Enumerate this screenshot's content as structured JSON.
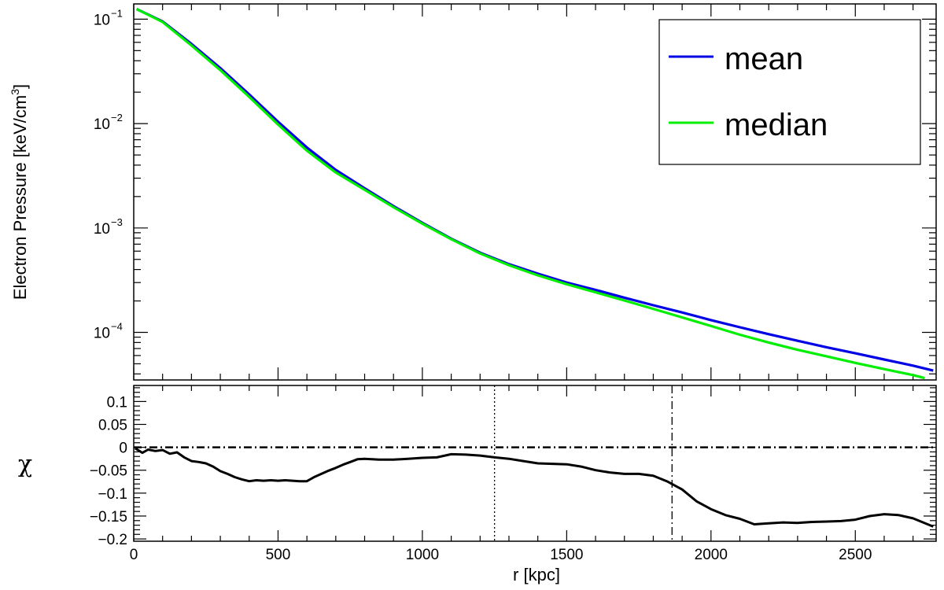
{
  "chart_data": [
    {
      "type": "line",
      "panel": "top",
      "ylabel": "Electron Pressure [keV/cm",
      "ylabel_sup": "3",
      "ylabel_close": "]",
      "yscale": "log",
      "xlim": [
        0,
        2780
      ],
      "ylim": [
        3.5e-05,
        0.14
      ],
      "y_tick_labels": [
        {
          "base": "10",
          "exp": "−1"
        },
        {
          "base": "10",
          "exp": "−2"
        },
        {
          "base": "10",
          "exp": "−3"
        },
        {
          "base": "10",
          "exp": "−4"
        }
      ],
      "legend": {
        "placement": "top-right",
        "entries": [
          "mean",
          "median"
        ]
      },
      "series": [
        {
          "name": "mean",
          "color": "#0000e6",
          "x": [
            10,
            100,
            200,
            300,
            400,
            500,
            600,
            700,
            800,
            900,
            1000,
            1100,
            1200,
            1300,
            1400,
            1500,
            1600,
            1700,
            1800,
            1900,
            2000,
            2100,
            2200,
            2300,
            2400,
            2500,
            2600,
            2700,
            2770
          ],
          "y": [
            0.125,
            0.095,
            0.058,
            0.034,
            0.019,
            0.0104,
            0.0059,
            0.0036,
            0.0024,
            0.00162,
            0.00112,
            0.00079,
            0.00058,
            0.00045,
            0.000365,
            0.0003,
            0.000255,
            0.000215,
            0.000182,
            0.000155,
            0.000131,
            0.000112,
            9.6e-05,
            8.3e-05,
            7.2e-05,
            6.3e-05,
            5.5e-05,
            4.8e-05,
            4.3e-05
          ]
        },
        {
          "name": "median",
          "color": "#00ee00",
          "x": [
            10,
            100,
            200,
            300,
            400,
            500,
            600,
            700,
            800,
            900,
            1000,
            1100,
            1200,
            1300,
            1400,
            1500,
            1600,
            1700,
            1800,
            1900,
            2000,
            2100,
            2200,
            2300,
            2400,
            2500,
            2600,
            2700,
            2740
          ],
          "y": [
            0.125,
            0.094,
            0.056,
            0.0325,
            0.018,
            0.0098,
            0.0055,
            0.0034,
            0.00232,
            0.00158,
            0.0011,
            0.00078,
            0.00057,
            0.00044,
            0.000352,
            0.000289,
            0.000242,
            0.000202,
            0.000168,
            0.000139,
            0.000115,
            9.5e-05,
            8e-05,
            6.8e-05,
            5.9e-05,
            5.1e-05,
            4.45e-05,
            3.9e-05,
            3.65e-05
          ]
        }
      ]
    },
    {
      "type": "line",
      "panel": "bottom",
      "xlabel": "r [kpc]",
      "ylabel": "χ",
      "xlim": [
        0,
        2780
      ],
      "ylim": [
        -0.205,
        0.135
      ],
      "x_ticks": [
        0,
        500,
        1000,
        1500,
        2000,
        2500
      ],
      "x_tick_labels": [
        "0",
        "500",
        "1000",
        "1500",
        "2000",
        "2500"
      ],
      "y_ticks": [
        0.1,
        0.05,
        0,
        -0.05,
        -0.1,
        -0.15,
        -0.2
      ],
      "y_tick_labels": [
        "0.1",
        "0.05",
        "0",
        "−0.05",
        "−0.1",
        "−0.15",
        "−0.2"
      ],
      "reference_lines": [
        {
          "type": "horizontal",
          "y": 0,
          "style": "dash-dot"
        },
        {
          "type": "vertical",
          "x": 1250,
          "style": "dotted"
        },
        {
          "type": "vertical",
          "x": 1865,
          "style": "dash-dot"
        }
      ],
      "series": [
        {
          "name": "",
          "color": "#000000",
          "x": [
            5,
            30,
            50,
            75,
            100,
            125,
            150,
            175,
            200,
            225,
            250,
            275,
            300,
            325,
            350,
            375,
            400,
            425,
            450,
            475,
            500,
            525,
            550,
            575,
            600,
            625,
            650,
            675,
            700,
            725,
            750,
            775,
            800,
            850,
            900,
            950,
            1000,
            1050,
            1100,
            1150,
            1200,
            1250,
            1300,
            1350,
            1400,
            1450,
            1500,
            1550,
            1600,
            1650,
            1700,
            1750,
            1800,
            1850,
            1900,
            1950,
            2000,
            2050,
            2100,
            2150,
            2200,
            2250,
            2300,
            2350,
            2400,
            2450,
            2500,
            2550,
            2600,
            2650,
            2700,
            2770
          ],
          "y": [
            -0.002,
            -0.012,
            -0.005,
            -0.008,
            -0.006,
            -0.014,
            -0.011,
            -0.022,
            -0.03,
            -0.032,
            -0.035,
            -0.042,
            -0.052,
            -0.058,
            -0.065,
            -0.07,
            -0.074,
            -0.072,
            -0.073,
            -0.072,
            -0.073,
            -0.072,
            -0.073,
            -0.074,
            -0.074,
            -0.065,
            -0.058,
            -0.051,
            -0.045,
            -0.038,
            -0.032,
            -0.026,
            -0.025,
            -0.027,
            -0.027,
            -0.025,
            -0.023,
            -0.022,
            -0.015,
            -0.016,
            -0.018,
            -0.022,
            -0.025,
            -0.03,
            -0.035,
            -0.036,
            -0.037,
            -0.042,
            -0.05,
            -0.055,
            -0.058,
            -0.058,
            -0.062,
            -0.075,
            -0.092,
            -0.118,
            -0.135,
            -0.148,
            -0.156,
            -0.168,
            -0.166,
            -0.164,
            -0.165,
            -0.163,
            -0.162,
            -0.161,
            -0.158,
            -0.15,
            -0.146,
            -0.148,
            -0.155,
            -0.173
          ]
        }
      ]
    }
  ]
}
